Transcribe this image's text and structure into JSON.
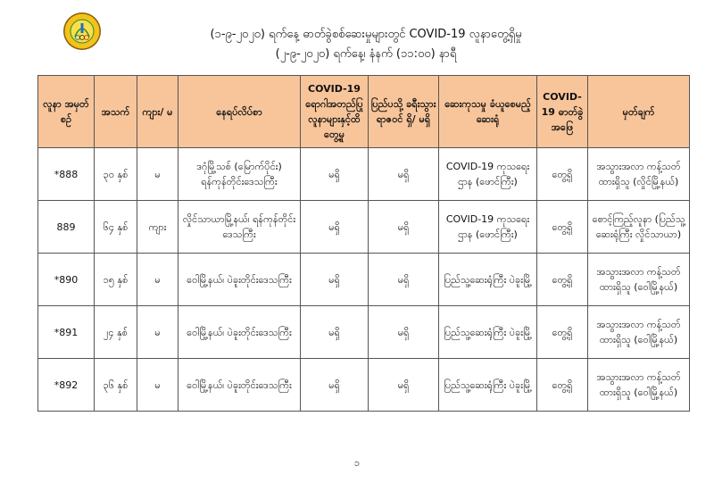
{
  "header": {
    "logo_text": "MINISTRY OF HEALTH AND SPORTS",
    "title_line1": "(၁-၉-၂၀၂၀) ရက်နေ့ ဓာတ်ခွဲစစ်ဆေးမှုများတွင် COVID-19 လူနာတွေ့ရှိမှု",
    "title_line2": "(၂-၉-၂၀၂၀) ရက်နေ့၊ နံနက် (၁၁:၀၀) နာရီ"
  },
  "colors": {
    "header_bg": "#F8C59A",
    "border": "#555555"
  },
  "table": {
    "columns": [
      "လူနာ အမှတ်စဉ်",
      "အသက်",
      "ကျား/ မ",
      "နေရပ်လိပ်စာ",
      "COVID-19 ရောဂါအတည်ပြု လူနာများနှင့်ထိတွေ့မှု",
      "ပြည်ပသို့ ခရီးသွား ရာဇဝင် ရှိ/ မရှိ",
      "ဆေးကုသမှု ခံယူစေမည့် ဆေးရုံ",
      "COVID-19 ဓာတ်ခွဲ အဖြေ",
      "မှတ်ချက်"
    ],
    "rows": [
      [
        "*888",
        "၃၀ နှစ်",
        "မ",
        "ဒဂုံမြို့သစ် (မြောက်ပိုင်း) ရန်ကုန်တိုင်းဒေသကြီး",
        "မရှိ",
        "မရှိ",
        "COVID-19 ကုသရေးဌာန (ဖောင်ကြီး)",
        "တွေ့ရှိ",
        "အသွားအလာ ကန့်သတ်ထားရှိသူ (လှိုင်မြို့နယ်)"
      ],
      [
        "889",
        "၆၄ နှစ်",
        "ကျား",
        "လှိုင်သာယာမြို့နယ်၊ ရန်ကုန်တိုင်းဒေသကြီး",
        "မရှိ",
        "မရှိ",
        "COVID-19 ကုသရေးဌာန (ဖောင်ကြီး)",
        "တွေ့ရှိ",
        "စောင့်ကြည့်လူနာ (ပြည်သူ့ဆေးရုံကြီး လှိုင်သာယာ)"
      ],
      [
        "*890",
        "၁၅ နှစ်",
        "မ",
        "ဝေါမြို့နယ်၊ ပဲခူးတိုင်းဒေသကြီး",
        "မရှိ",
        "မရှိ",
        "ပြည်သူ့ဆေးရုံကြီး ပဲခူးမြို့",
        "တွေ့ရှိ",
        "အသွားအလာ ကန့်သတ်ထားရှိသူ (ဝေါမြို့နယ်)"
      ],
      [
        "*891",
        "၂၄ နှစ်",
        "မ",
        "ဝေါမြို့နယ်၊ ပဲခူးတိုင်းဒေသကြီး",
        "မရှိ",
        "မရှိ",
        "ပြည်သူ့ဆေးရုံကြီး ပဲခူးမြို့",
        "တွေ့ရှိ",
        "အသွားအလာ ကန့်သတ်ထားရှိသူ (ဝေါမြို့နယ်)"
      ],
      [
        "*892",
        "၃၆ နှစ်",
        "မ",
        "ဝေါမြို့နယ်၊ ပဲခူးတိုင်းဒေသကြီး",
        "မရှိ",
        "မရှိ",
        "ပြည်သူ့ဆေးရုံကြီး ပဲခူးမြို့",
        "တွေ့ရှိ",
        "အသွားအလာ ကန့်သတ်ထားရှိသူ (ဝေါမြို့နယ်)"
      ]
    ]
  },
  "footer": {
    "page_number": "၁"
  }
}
